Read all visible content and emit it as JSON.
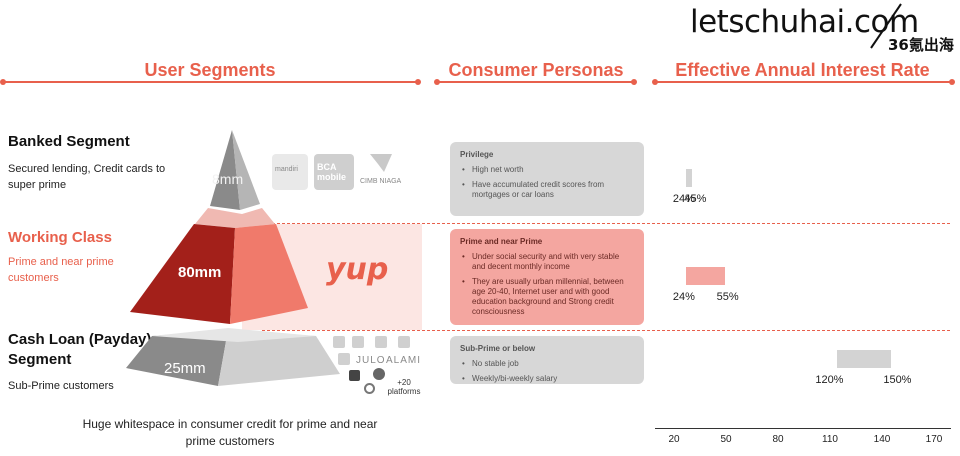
{
  "watermark": {
    "main": "letschuhai.com",
    "sub": "36氪出海"
  },
  "headers": {
    "user_segments": "User Segments",
    "consumer_personas": "Consumer Personas",
    "interest_rate": "Effective Annual Interest Rate"
  },
  "segments": [
    {
      "title": "Banked Segment",
      "desc": "Secured lending, Credit cards to super prime",
      "pyramid_label": "8mm"
    },
    {
      "title": "Working Class",
      "desc": "Prime and near prime customers",
      "pyramid_label": "80mm"
    },
    {
      "title": "Cash Loan (Payday) Segment",
      "desc": "Sub-Prime customers",
      "pyramid_label": "25mm"
    }
  ],
  "logos": {
    "banked": [
      "mandiri",
      "BCA mobile",
      "CIMB NIAGA"
    ],
    "working": "yup",
    "payday": [
      "JULO",
      "ALAMI",
      "+20 platforms"
    ]
  },
  "personas": [
    {
      "title": "Privilege",
      "points": [
        "High net worth",
        "Have accumulated credit scores from mortgages or car loans"
      ]
    },
    {
      "title": "Prime and near Prime",
      "points": [
        "Under social security and with very stable and decent monthly income",
        "They are usually urban millennial, between age 20-40, Internet user and with good education background and Strong credit consciousness"
      ]
    },
    {
      "title": "Sub-Prime or below",
      "points": [
        "No stable job",
        "Weekly/bi-weekly salary"
      ]
    }
  ],
  "footnote": "Huge whitespace in consumer credit for prime and near prime customers",
  "chart_data": {
    "type": "bar",
    "title": "Effective Annual Interest Rate",
    "orientation": "horizontal-range",
    "categories": [
      "Banked Segment",
      "Working Class",
      "Cash Loan (Payday) Segment"
    ],
    "ranges": [
      {
        "low": 24,
        "high": 45,
        "low_label": "24%",
        "high_label": "45%",
        "color": "#d3d3d3"
      },
      {
        "low": 24,
        "high": 55,
        "low_label": "24%",
        "high_label": "55%",
        "color": "#f4a6a0"
      },
      {
        "low": 120,
        "high": 150,
        "low_label": "120%",
        "high_label": "150%",
        "color": "#d3d3d3"
      }
    ],
    "x_ticks": [
      20,
      50,
      80,
      110,
      140,
      170
    ],
    "xlim": [
      20,
      170
    ]
  },
  "colors": {
    "accent": "#e8604c",
    "grey": "#d3d3d3",
    "pink": "#f4a6a0",
    "dark_red": "#a3201a"
  }
}
